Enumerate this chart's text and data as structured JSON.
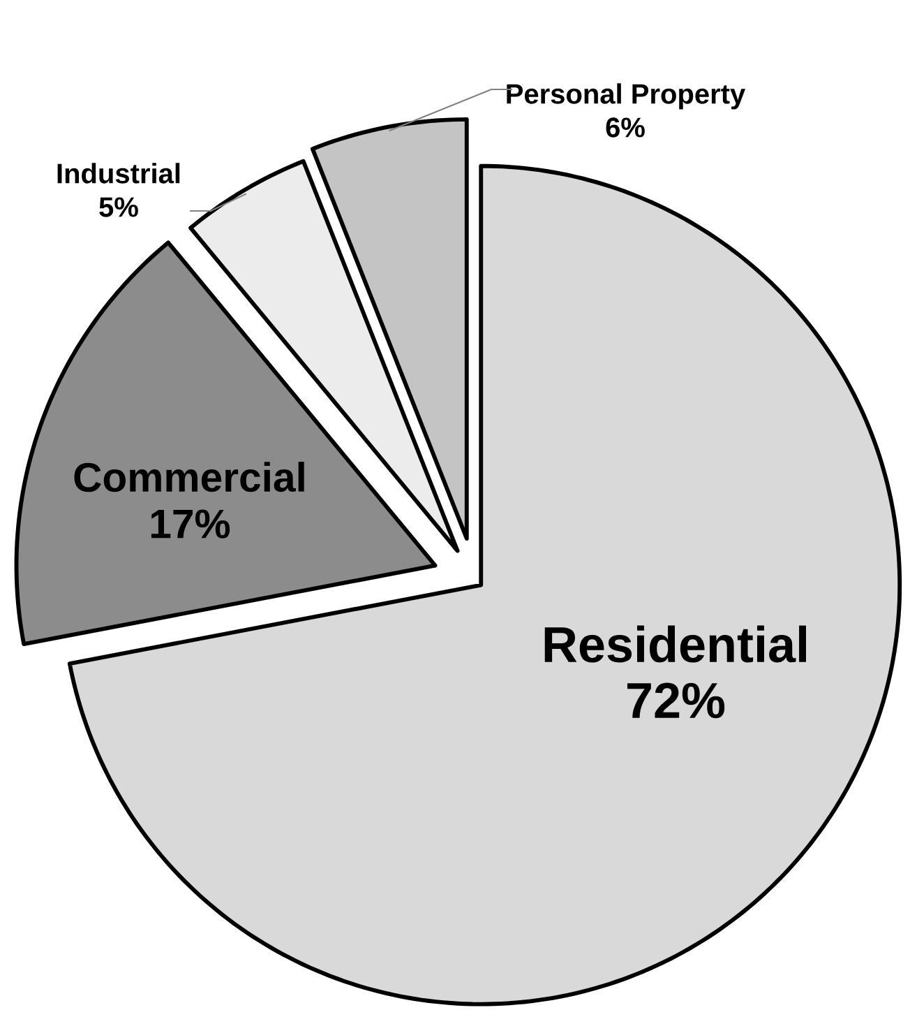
{
  "chart_data": {
    "type": "pie",
    "categories": [
      "Residential",
      "Commercial",
      "Industrial",
      "Personal Property"
    ],
    "values": [
      72,
      17,
      5,
      6
    ],
    "value_labels": [
      "72%",
      "17%",
      "5%",
      "6%"
    ],
    "colors": [
      "#d9d9d9",
      "#8c8c8c",
      "#ececec",
      "#c4c4c4"
    ]
  }
}
